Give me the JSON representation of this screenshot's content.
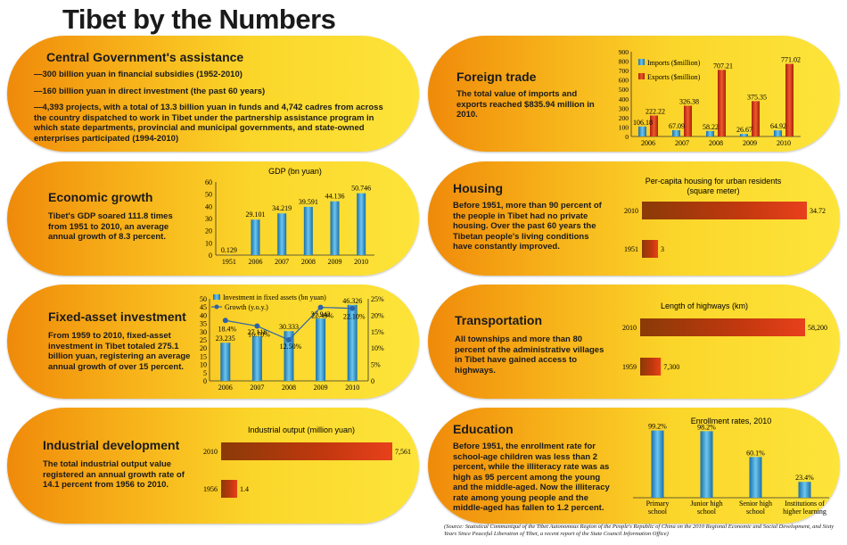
{
  "title": "Tibet by the Numbers",
  "colors": {
    "bar_blue": "#2a8fc0",
    "bar_red": "#d43a1c",
    "line_blue": "#2c64a8",
    "panel_orange": "#f08a0a",
    "panel_yellow": "#fde43a"
  },
  "central": {
    "title": "Central Government's assistance",
    "lines": [
      "—300 billion yuan in financial subsidies (1952-2010)",
      "—160 billion yuan in direct investment (the past 60 years)",
      "—4,393 projects, with a total of 13.3 billion yuan in funds and 4,742 cadres from across the country dispatched to work in Tibet under the partnership assistance program in which state departments, provincial and municipal governments, and state-owned enterprises participated (1994-2010)"
    ]
  },
  "economic": {
    "title": "Economic growth",
    "text": "Tibet's GDP soared 111.8 times from 1951 to 2010, an average annual growth of 8.3 percent."
  },
  "fixed": {
    "title": "Fixed-asset investment",
    "text": "From 1959 to 2010, fixed-asset investment in Tibet totaled 275.1 billion yuan, registering an average annual growth of over 15 percent."
  },
  "industrial": {
    "title": "Industrial development",
    "text": "The total industrial output value registered an annual growth rate of 14.1 percent from 1956 to 2010."
  },
  "foreign": {
    "title": "Foreign trade",
    "text": "The total value of imports and exports reached $835.94 million in 2010."
  },
  "housing": {
    "title": "Housing",
    "text": "Before 1951, more than 90 percent of the people in Tibet had no private housing. Over the past 60 years the Tibetan people's living conditions have constantly improved."
  },
  "transport": {
    "title": "Transportation",
    "text": "All townships and more than 80 percent of the administrative villages in Tibet have gained access to highways."
  },
  "education": {
    "title": "Education",
    "text": "Before 1951, the enrollment rate for school-age children was less than 2 percent, while the illiteracy rate was as high as 95 percent among the young and the middle-aged. Now the illiteracy rate among young people and the middle-aged has fallen to 1.2 percent."
  },
  "source": "(Source: Statistical Communiqué of the Tibet Autonomous Region of the People's Republic of China on the 2010 Regional Economic and Social Development, and Sixty Years Since Peaceful Liberation of Tibet, a recent report of the State Council Information Office)",
  "chart_data": [
    {
      "id": "gdp",
      "type": "bar",
      "title": "GDP (bn yuan)",
      "categories": [
        "1951",
        "2006",
        "2007",
        "2008",
        "2009",
        "2010"
      ],
      "values": [
        0.129,
        29.101,
        34.219,
        39.591,
        44.136,
        50.746
      ],
      "value_labels": [
        "0.129",
        "29.101",
        "34.219",
        "39.591",
        "44.136",
        "50.746"
      ],
      "ylim": [
        0,
        60
      ],
      "yticks": [
        "0",
        "10",
        "20",
        "30",
        "40",
        "50",
        "60"
      ]
    },
    {
      "id": "fixed",
      "type": "bar",
      "categories": [
        "2006",
        "2007",
        "2008",
        "2009",
        "2010"
      ],
      "series": [
        {
          "name": "Investment in fixed assets (bn yuan)",
          "type": "bar",
          "values": [
            23.235,
            27.118,
            30.333,
            37.942,
            46.326
          ],
          "value_labels": [
            "23.235",
            "27.118",
            "30.333",
            "37.942",
            "46.326"
          ]
        },
        {
          "name": "Growth (y.o.y.)",
          "type": "line",
          "values": [
            18.4,
            16.7,
            12.5,
            22.4,
            22.1
          ],
          "value_labels": [
            "18.4%",
            "16.70%",
            "12.50%",
            "22.40%",
            "22.10%"
          ]
        }
      ],
      "ylim": [
        0,
        50
      ],
      "yticks": [
        "0",
        "5",
        "10",
        "15",
        "20",
        "25",
        "30",
        "35",
        "40",
        "45",
        "50"
      ],
      "y2lim": [
        0,
        25
      ],
      "y2ticks": [
        "0",
        "5%",
        "10%",
        "15%",
        "20%",
        "25%"
      ]
    },
    {
      "id": "industrial",
      "type": "bar",
      "orientation": "horizontal",
      "title": "Industrial output (million yuan)",
      "categories": [
        "2010",
        "1956"
      ],
      "values": [
        7561,
        1.4
      ],
      "value_labels": [
        "7,561",
        "1.4"
      ]
    },
    {
      "id": "trade",
      "type": "bar",
      "categories": [
        "2006",
        "2007",
        "2008",
        "2009",
        "2010"
      ],
      "series": [
        {
          "name": "Imports ($million)",
          "values": [
            106.18,
            67.09,
            58.22,
            26.67,
            64.92
          ],
          "value_labels": [
            "106.18",
            "67.09",
            "58.22",
            "26.67",
            "64.92"
          ]
        },
        {
          "name": "Exports ($million)",
          "values": [
            222.22,
            326.38,
            707.21,
            375.35,
            771.02
          ],
          "value_labels": [
            "222.22",
            "326.38",
            "707.21",
            "375.35",
            "771.02"
          ]
        }
      ],
      "ylim": [
        0,
        900
      ],
      "yticks": [
        "0",
        "100",
        "200",
        "300",
        "400",
        "500",
        "600",
        "700",
        "800",
        "900"
      ]
    },
    {
      "id": "housing",
      "type": "bar",
      "orientation": "horizontal",
      "title": "Per-capita housing for urban residents (square meter)",
      "categories": [
        "2010",
        "1951"
      ],
      "values": [
        34.72,
        3
      ],
      "value_labels": [
        "34.72",
        "3"
      ]
    },
    {
      "id": "highways",
      "type": "bar",
      "orientation": "horizontal",
      "title": "Length of highways (km)",
      "categories": [
        "2010",
        "1959"
      ],
      "values": [
        58200,
        7300
      ],
      "value_labels": [
        "58,200",
        "7,300"
      ]
    },
    {
      "id": "enroll",
      "type": "bar",
      "title": "Enrollment rates, 2010",
      "categories": [
        "Primary school",
        "Junior high school",
        "Senior high school",
        "Institutions of higher learning"
      ],
      "category_lines": [
        [
          "Primary",
          "school"
        ],
        [
          "Junior high",
          "school"
        ],
        [
          "Senior high",
          "school"
        ],
        [
          "Institutions of",
          "higher learning"
        ]
      ],
      "values": [
        99.2,
        98.2,
        60.1,
        23.4
      ],
      "value_labels": [
        "99.2%",
        "98.2%",
        "60.1%",
        "23.4%"
      ]
    }
  ]
}
